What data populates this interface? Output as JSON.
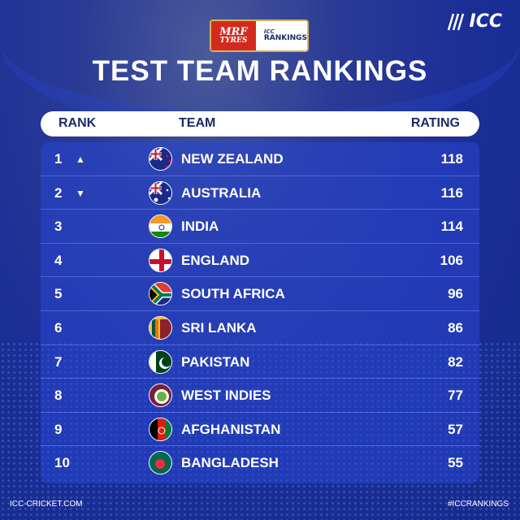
{
  "header": {
    "sponsor_top": "MRF",
    "sponsor_bottom": "TYRES",
    "rankings_small": "ICC",
    "rankings_big": "RANKINGS",
    "brand": "ICC",
    "title": "TEST TEAM RANKINGS"
  },
  "columns": {
    "rank": "RANK",
    "team": "TEAM",
    "rating": "RATING"
  },
  "rows": [
    {
      "rank": "1",
      "arrow": "▲",
      "team": "NEW ZEALAND",
      "rating": "118",
      "flag": "nz"
    },
    {
      "rank": "2",
      "arrow": "▼",
      "team": "AUSTRALIA",
      "rating": "116",
      "flag": "au"
    },
    {
      "rank": "3",
      "arrow": "",
      "team": "INDIA",
      "rating": "114",
      "flag": "in"
    },
    {
      "rank": "4",
      "arrow": "",
      "team": "ENGLAND",
      "rating": "106",
      "flag": "en"
    },
    {
      "rank": "5",
      "arrow": "",
      "team": "SOUTH AFRICA",
      "rating": "96",
      "flag": "za"
    },
    {
      "rank": "6",
      "arrow": "",
      "team": "SRI LANKA",
      "rating": "86",
      "flag": "lk"
    },
    {
      "rank": "7",
      "arrow": "",
      "team": "PAKISTAN",
      "rating": "82",
      "flag": "pk"
    },
    {
      "rank": "8",
      "arrow": "",
      "team": "WEST INDIES",
      "rating": "77",
      "flag": "wi"
    },
    {
      "rank": "9",
      "arrow": "",
      "team": "AFGHANISTAN",
      "rating": "57",
      "flag": "af"
    },
    {
      "rank": "10",
      "arrow": "",
      "team": "BANGLADESH",
      "rating": "55",
      "flag": "bd"
    }
  ],
  "footer": {
    "left": "ICC-CRICKET.COM",
    "right": "#ICCRANKINGS"
  }
}
